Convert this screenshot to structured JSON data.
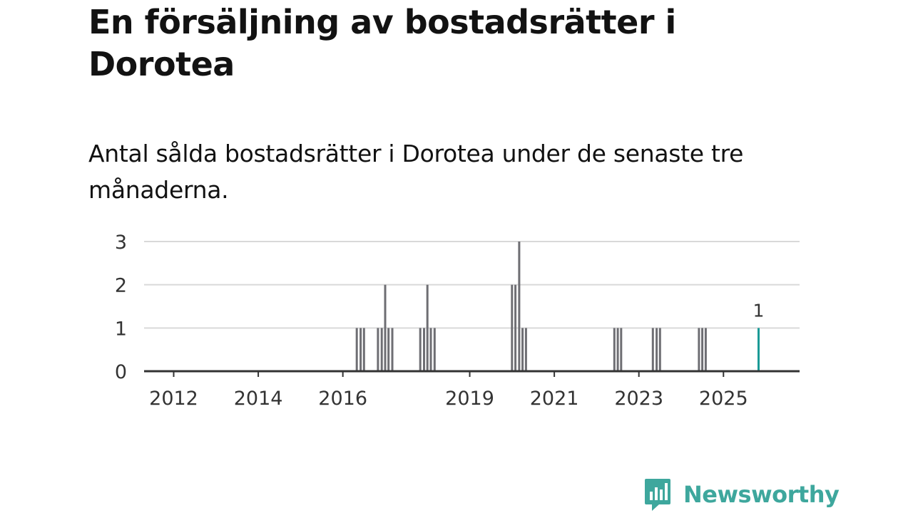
{
  "header": {
    "title": "En försäljning av bostadsrätter i Dorotea",
    "subtitle": "Antal sålda bostadsrätter i Dorotea under de senaste tre månaderna."
  },
  "brand": {
    "name": "Newsworthy",
    "icon": "chart-bubble-icon",
    "color": "#3ea79d"
  },
  "chart_data": {
    "type": "bar",
    "title": "En försäljning av bostadsrätter i Dorotea",
    "subtitle": "Antal sålda bostadsrätter i Dorotea under de senaste tre månaderna.",
    "xlabel": "",
    "ylabel": "",
    "ylim": [
      0,
      3
    ],
    "yticks": [
      0,
      1,
      2,
      3
    ],
    "xlim": [
      2011.3,
      2026.8
    ],
    "xticks": [
      2012,
      2014,
      2016,
      2019,
      2021,
      2023,
      2025
    ],
    "grid": true,
    "legend": "none",
    "bar_color": "#6e6e73",
    "highlight_color": "#1a9a96",
    "series": [
      {
        "name": "Antal sålda bostadsrätter",
        "points": [
          {
            "x": 2016.33,
            "y": 1
          },
          {
            "x": 2016.42,
            "y": 1
          },
          {
            "x": 2016.5,
            "y": 1
          },
          {
            "x": 2016.83,
            "y": 1
          },
          {
            "x": 2016.92,
            "y": 1
          },
          {
            "x": 2017.0,
            "y": 2
          },
          {
            "x": 2017.08,
            "y": 1
          },
          {
            "x": 2017.17,
            "y": 1
          },
          {
            "x": 2017.83,
            "y": 1
          },
          {
            "x": 2017.92,
            "y": 1
          },
          {
            "x": 2018.0,
            "y": 2
          },
          {
            "x": 2018.08,
            "y": 1
          },
          {
            "x": 2018.17,
            "y": 1
          },
          {
            "x": 2020.0,
            "y": 2
          },
          {
            "x": 2020.08,
            "y": 2
          },
          {
            "x": 2020.17,
            "y": 3
          },
          {
            "x": 2020.25,
            "y": 1
          },
          {
            "x": 2020.33,
            "y": 1
          },
          {
            "x": 2022.42,
            "y": 1
          },
          {
            "x": 2022.5,
            "y": 1
          },
          {
            "x": 2022.58,
            "y": 1
          },
          {
            "x": 2023.33,
            "y": 1
          },
          {
            "x": 2023.42,
            "y": 1
          },
          {
            "x": 2023.5,
            "y": 1
          },
          {
            "x": 2024.42,
            "y": 1
          },
          {
            "x": 2024.5,
            "y": 1
          },
          {
            "x": 2024.58,
            "y": 1
          },
          {
            "x": 2025.83,
            "y": 1,
            "highlight": true,
            "label": "1"
          }
        ]
      }
    ]
  }
}
